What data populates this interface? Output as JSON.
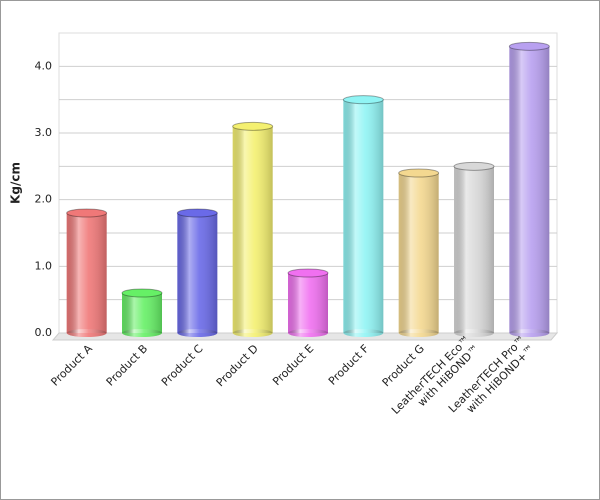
{
  "chart_data": {
    "type": "bar",
    "y_label": "Kg/cm",
    "categories": [
      "Product A",
      "Product B",
      "Product C",
      "Product D",
      "Product E",
      "Product F",
      "Product G",
      [
        "LeatherTECH Eco™",
        "with HiBOND™"
      ],
      [
        "LeatherTECH Pro™",
        "with HiBOND+™"
      ]
    ],
    "values": [
      1.8,
      0.6,
      1.8,
      3.1,
      0.9,
      3.5,
      2.4,
      2.5,
      4.3
    ],
    "colors": [
      "#f07878",
      "#66f066",
      "#6a6ae8",
      "#f4f070",
      "#f070f0",
      "#90f4f4",
      "#f4d890",
      "#d8d8d8",
      "#b8a0f0"
    ],
    "ylim": [
      0,
      4.5
    ],
    "yticks": [
      {
        "value": 0,
        "label": "0.0"
      },
      {
        "value": 1,
        "label": "1.0"
      },
      {
        "value": 2,
        "label": "2.0"
      },
      {
        "value": 3,
        "label": "3.0"
      },
      {
        "value": 4,
        "label": "4.0"
      }
    ],
    "minor_yticks": [
      0.5,
      1.5,
      2.5,
      3.5
    ],
    "grid": true
  }
}
